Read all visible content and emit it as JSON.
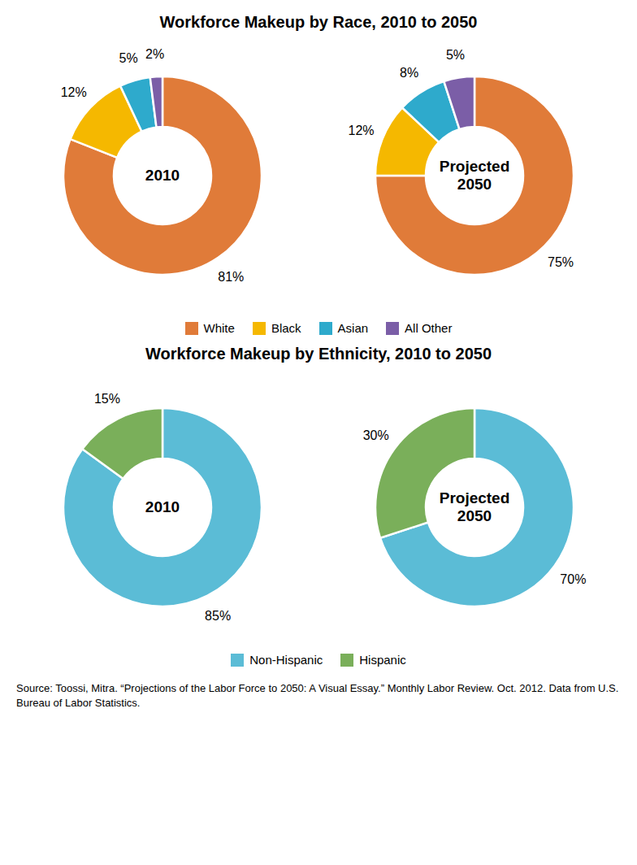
{
  "chart_data": [
    {
      "type": "pie",
      "title": "Workforce Makeup by Race, 2010 to 2050",
      "categories": [
        "White",
        "Black",
        "Asian",
        "All Other"
      ],
      "colors": [
        "#E07B39",
        "#F5B800",
        "#2EAACC",
        "#7B5EA7"
      ],
      "series": [
        {
          "name": "2010",
          "values": [
            81,
            12,
            5,
            2
          ],
          "value_labels": [
            "81%",
            "12%",
            "5%",
            "2%"
          ]
        },
        {
          "name": "Projected\n2050",
          "values": [
            75,
            12,
            8,
            5
          ],
          "value_labels": [
            "75%",
            "12%",
            "8%",
            "5%"
          ]
        }
      ],
      "data_labels": true,
      "legend": "bottom"
    },
    {
      "type": "pie",
      "title": "Workforce Makeup by Ethnicity, 2010 to 2050",
      "categories": [
        "Non-Hispanic",
        "Hispanic"
      ],
      "colors": [
        "#5BBCD6",
        "#7AAF5A"
      ],
      "series": [
        {
          "name": "2010",
          "values": [
            85,
            15
          ],
          "value_labels": [
            "85%",
            "15%"
          ]
        },
        {
          "name": "Projected\n2050",
          "values": [
            70,
            30
          ],
          "value_labels": [
            "70%",
            "30%"
          ]
        }
      ],
      "data_labels": true,
      "legend": "bottom",
      "annotations": [
        "Source: Toossi, Mitra. “Projections of the Labor Force to 2050: A Visual Essay.” Monthly Labor Review. Oct. 2012. Data from U.S. Bureau of Labor Statistics."
      ]
    }
  ]
}
